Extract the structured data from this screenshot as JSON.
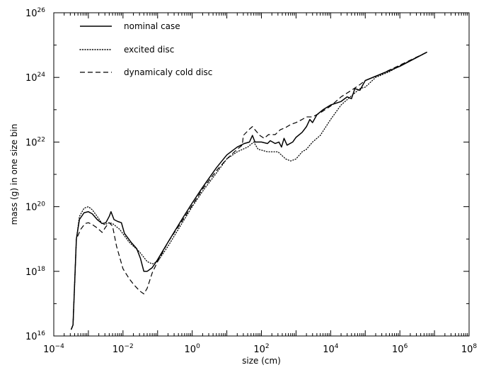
{
  "chart_data": {
    "type": "line",
    "title": "",
    "xlabel": "size (cm)",
    "ylabel": "mass (g) in one size bin",
    "x_scale": "log",
    "y_scale": "log",
    "xlim": [
      0.0001,
      100000000
    ],
    "ylim": [
      1e+16,
      1e+26
    ],
    "x_ticks": [
      {
        "base": "10",
        "exp": "−4"
      },
      {
        "base": "10",
        "exp": "−2"
      },
      {
        "base": "10",
        "exp": "0"
      },
      {
        "base": "10",
        "exp": "2"
      },
      {
        "base": "10",
        "exp": "4"
      },
      {
        "base": "10",
        "exp": "6"
      },
      {
        "base": "10",
        "exp": "8"
      }
    ],
    "y_ticks": [
      {
        "base": "10",
        "exp": "16"
      },
      {
        "base": "10",
        "exp": "18"
      },
      {
        "base": "10",
        "exp": "20"
      },
      {
        "base": "10",
        "exp": "22"
      },
      {
        "base": "10",
        "exp": "24"
      },
      {
        "base": "10",
        "exp": "26"
      }
    ],
    "grid": false,
    "legend_position": "top-left",
    "series": [
      {
        "name": "nominal case",
        "style": "solid",
        "color": "#000000",
        "points": [
          [
            0.00032,
            1.6e+16
          ],
          [
            0.00036,
            2.2e+16
          ],
          [
            0.00045,
            1e+19
          ],
          [
            0.00055,
            4e+19
          ],
          [
            0.00075,
            6.5e+19
          ],
          [
            0.001,
            7e+19
          ],
          [
            0.0013,
            6e+19
          ],
          [
            0.0018,
            4e+19
          ],
          [
            0.0025,
            3e+19
          ],
          [
            0.0032,
            3.2e+19
          ],
          [
            0.004,
            5e+19
          ],
          [
            0.0045,
            7e+19
          ],
          [
            0.0055,
            4e+19
          ],
          [
            0.007,
            3.5e+19
          ],
          [
            0.009,
            3.2e+19
          ],
          [
            0.011,
            1.5e+19
          ],
          [
            0.017,
            8e+18
          ],
          [
            0.025,
            5e+18
          ],
          [
            0.032,
            2.5e+18
          ],
          [
            0.04,
            1e+18
          ],
          [
            0.05,
            1e+18
          ],
          [
            0.07,
            1.3e+18
          ],
          [
            0.1,
            2.3e+18
          ],
          [
            0.2,
            8e+18
          ],
          [
            0.5,
            4e+19
          ],
          [
            1,
            1.3e+20
          ],
          [
            2,
            4e+20
          ],
          [
            5,
            1.6e+21
          ],
          [
            10,
            4e+21
          ],
          [
            20,
            7e+21
          ],
          [
            32,
            9e+21
          ],
          [
            45,
            1e+22
          ],
          [
            55,
            1.6e+22
          ],
          [
            65,
            1e+22
          ],
          [
            100,
            1e+22
          ],
          [
            150,
            9e+21
          ],
          [
            180,
            1.1e+22
          ],
          [
            250,
            9e+21
          ],
          [
            320,
            1e+22
          ],
          [
            380,
            7e+21
          ],
          [
            450,
            1.3e+22
          ],
          [
            550,
            8e+21
          ],
          [
            800,
            1e+22
          ],
          [
            1000,
            1.4e+22
          ],
          [
            1500,
            2e+22
          ],
          [
            2000,
            3e+22
          ],
          [
            2500,
            5e+22
          ],
          [
            3000,
            4e+22
          ],
          [
            4000,
            7e+22
          ],
          [
            6000,
            1e+23
          ],
          [
            10000,
            1.4e+23
          ],
          [
            20000,
            1.8e+23
          ],
          [
            30000,
            2.5e+23
          ],
          [
            40000,
            2.2e+23
          ],
          [
            50000,
            4.5e+23
          ],
          [
            70000,
            4e+23
          ],
          [
            100000,
            8e+23
          ],
          [
            300000,
            1.3e+24
          ],
          [
            1000000,
            2.2e+24
          ],
          [
            6000000,
            6e+24
          ]
        ]
      },
      {
        "name": "excited disc",
        "style": "dotted",
        "color": "#000000",
        "points": [
          [
            0.00032,
            1.6e+16
          ],
          [
            0.00036,
            2.2e+16
          ],
          [
            0.00045,
            1e+19
          ],
          [
            0.00055,
            5e+19
          ],
          [
            0.00075,
            9e+19
          ],
          [
            0.001,
            1e+20
          ],
          [
            0.0013,
            8e+19
          ],
          [
            0.0018,
            5e+19
          ],
          [
            0.0025,
            3e+19
          ],
          [
            0.003,
            2.8e+19
          ],
          [
            0.004,
            3.2e+19
          ],
          [
            0.005,
            3e+19
          ],
          [
            0.008,
            2e+19
          ],
          [
            0.015,
            8e+18
          ],
          [
            0.03,
            4e+18
          ],
          [
            0.05,
            2e+18
          ],
          [
            0.07,
            1.7e+18
          ],
          [
            0.1,
            2e+18
          ],
          [
            0.2,
            6e+18
          ],
          [
            0.5,
            3e+19
          ],
          [
            1,
            1e+20
          ],
          [
            2,
            3e+20
          ],
          [
            5,
            1.1e+21
          ],
          [
            10,
            3e+21
          ],
          [
            20,
            5e+21
          ],
          [
            40,
            7e+21
          ],
          [
            60,
            1e+22
          ],
          [
            80,
            6e+21
          ],
          [
            150,
            5e+21
          ],
          [
            300,
            5e+21
          ],
          [
            500,
            3e+21
          ],
          [
            700,
            2.6e+21
          ],
          [
            1000,
            3e+21
          ],
          [
            1500,
            5e+21
          ],
          [
            2000,
            6e+21
          ],
          [
            3000,
            1e+22
          ],
          [
            5000,
            1.6e+22
          ],
          [
            10000,
            5e+22
          ],
          [
            20000,
            1.4e+23
          ],
          [
            40000,
            2.7e+23
          ],
          [
            70000,
            4.5e+23
          ],
          [
            100000,
            5e+23
          ],
          [
            200000,
            1e+24
          ],
          [
            500000,
            1.5e+24
          ],
          [
            1000000,
            2.3e+24
          ],
          [
            6000000,
            6e+24
          ]
        ]
      },
      {
        "name": "dynamicaly cold disc",
        "style": "dashed",
        "color": "#000000",
        "points": [
          [
            0.00032,
            1.6e+16
          ],
          [
            0.00036,
            2.2e+16
          ],
          [
            0.00045,
            1e+19
          ],
          [
            0.0006,
            2e+19
          ],
          [
            0.0008,
            3e+19
          ],
          [
            0.001,
            3.2e+19
          ],
          [
            0.0013,
            2.8e+19
          ],
          [
            0.0018,
            2.2e+19
          ],
          [
            0.0025,
            1.6e+19
          ],
          [
            0.0032,
            2.4e+19
          ],
          [
            0.004,
            3.2e+19
          ],
          [
            0.005,
            2.5e+19
          ],
          [
            0.0065,
            6e+18
          ],
          [
            0.01,
            1.2e+18
          ],
          [
            0.015,
            6e+17
          ],
          [
            0.02,
            4e+17
          ],
          [
            0.03,
            2.5e+17
          ],
          [
            0.04,
            2e+17
          ],
          [
            0.05,
            3e+17
          ],
          [
            0.07,
            9e+17
          ],
          [
            0.1,
            2e+18
          ],
          [
            0.2,
            8e+18
          ],
          [
            0.5,
            3.5e+19
          ],
          [
            1,
            1.1e+20
          ],
          [
            2,
            3.5e+20
          ],
          [
            5,
            1.3e+21
          ],
          [
            10,
            3e+21
          ],
          [
            20,
            6e+21
          ],
          [
            28,
            8e+21
          ],
          [
            30,
            1.6e+22
          ],
          [
            45,
            2.5e+22
          ],
          [
            55,
            3e+22
          ],
          [
            65,
            2.4e+22
          ],
          [
            90,
            1.6e+22
          ],
          [
            120,
            1.3e+22
          ],
          [
            160,
            1.7e+22
          ],
          [
            250,
            1.7e+22
          ],
          [
            350,
            2.4e+22
          ],
          [
            500,
            2.8e+22
          ],
          [
            700,
            3.5e+22
          ],
          [
            1000,
            4e+22
          ],
          [
            1500,
            5e+22
          ],
          [
            2000,
            6e+22
          ],
          [
            3000,
            6e+22
          ],
          [
            5000,
            8e+22
          ],
          [
            10000,
            1.3e+23
          ],
          [
            20000,
            2.5e+23
          ],
          [
            40000,
            4e+23
          ],
          [
            70000,
            6e+23
          ],
          [
            100000,
            8e+23
          ],
          [
            300000,
            1.3e+24
          ],
          [
            1000000,
            2.4e+24
          ],
          [
            6000000,
            6e+24
          ]
        ]
      }
    ]
  }
}
